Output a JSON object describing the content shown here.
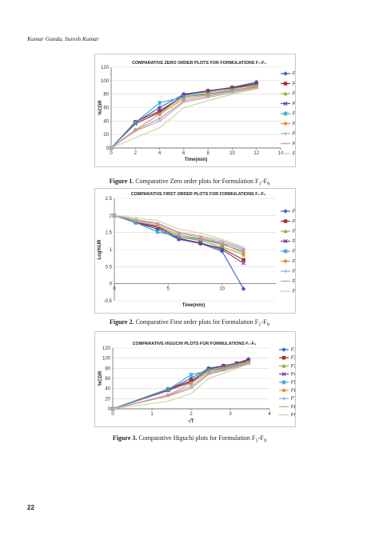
{
  "running_head": "Kumar Gunda, Suresh Kumar",
  "page_number": "22",
  "colors": {
    "F1": "#3a5fcd",
    "F2": "#b22222",
    "F3": "#8db33a",
    "F4": "#6a3d9a",
    "F5": "#33a9c9",
    "F6": "#f08c2a",
    "F7": "#8da9e0",
    "F8": "#d99a9a",
    "F9": "#c3d69b"
  },
  "figures": [
    {
      "caption_label": "Figure 1.",
      "caption_text": "Comparative Zero order plots for Formulation F",
      "caption_sub1": "1",
      "caption_mid": "-F",
      "caption_sub2": "9"
    },
    {
      "caption_label": "Figure 2.",
      "caption_text": "Comparative First order plots for Formulation F",
      "caption_sub1": "1",
      "caption_mid": "-F",
      "caption_sub2": "9"
    },
    {
      "caption_label": "Figure 3.",
      "caption_text": "Comparative Higuchi plots for Formulation F",
      "caption_sub1": "1",
      "caption_mid": "-F",
      "caption_sub2": "9"
    }
  ],
  "chart_data": [
    {
      "type": "line",
      "title": "COMPARATIVE  ZERO  ORDER PLOTS FOR FORMULATIONS  F₁-F₉",
      "xlabel": "Time(min)",
      "ylabel": "%CDR",
      "xlim": [
        0,
        14
      ],
      "ylim": [
        0,
        120
      ],
      "xticks": [
        0,
        2,
        4,
        6,
        8,
        10,
        12,
        14
      ],
      "yticks": [
        0,
        20,
        40,
        60,
        80,
        100,
        120
      ],
      "legend_position": "right",
      "x": [
        0,
        2,
        4,
        6,
        8,
        10,
        12
      ],
      "series": [
        {
          "name": "F1",
          "values": [
            0,
            38,
            60,
            80,
            85,
            90,
            98
          ]
        },
        {
          "name": "F2",
          "values": [
            0,
            39,
            55,
            78,
            85,
            89,
            95
          ]
        },
        {
          "name": "F3",
          "values": [
            0,
            37,
            52,
            76,
            82,
            88,
            93
          ]
        },
        {
          "name": "F4",
          "values": [
            0,
            36,
            53,
            79,
            84,
            90,
            96
          ]
        },
        {
          "name": "F5",
          "values": [
            0,
            38,
            67,
            76,
            80,
            86,
            91
          ]
        },
        {
          "name": "F6",
          "values": [
            0,
            27,
            50,
            73,
            79,
            85,
            92
          ]
        },
        {
          "name": "F7",
          "values": [
            0,
            26,
            44,
            70,
            77,
            84,
            90
          ]
        },
        {
          "name": "F8",
          "values": [
            0,
            25,
            40,
            68,
            75,
            82,
            89
          ]
        },
        {
          "name": "F9",
          "values": [
            0,
            15,
            30,
            60,
            70,
            80,
            88
          ]
        }
      ]
    },
    {
      "type": "line",
      "title": "COMPARATIVE  FIRST  ORDER PLOTS FOR FORMULATIONS F₁-F₉",
      "xlabel": "Time(min)",
      "ylabel": "Log%UR",
      "xlim": [
        0,
        15
      ],
      "ylim": [
        -0.5,
        2.5
      ],
      "xticks": [
        0,
        5,
        10
      ],
      "yticks": [
        -0.5,
        0,
        0.5,
        1,
        1.5,
        2,
        2.5
      ],
      "legend_position": "right",
      "x": [
        0,
        2,
        4,
        6,
        8,
        10,
        12
      ],
      "series": [
        {
          "name": "F1",
          "values": [
            2,
            1.79,
            1.6,
            1.3,
            1.18,
            0.95,
            -0.15
          ]
        },
        {
          "name": "F2",
          "values": [
            2,
            1.79,
            1.65,
            1.34,
            1.18,
            1.04,
            0.7
          ]
        },
        {
          "name": "F3",
          "values": [
            2,
            1.8,
            1.68,
            1.38,
            1.26,
            1.08,
            0.85
          ]
        },
        {
          "name": "F4",
          "values": [
            2,
            1.81,
            1.67,
            1.32,
            1.2,
            1.0,
            0.6
          ]
        },
        {
          "name": "F5",
          "values": [
            2,
            1.79,
            1.52,
            1.38,
            1.3,
            1.15,
            0.95
          ]
        },
        {
          "name": "F6",
          "values": [
            2,
            1.86,
            1.7,
            1.43,
            1.32,
            1.18,
            0.9
          ]
        },
        {
          "name": "F7",
          "values": [
            2,
            1.87,
            1.75,
            1.48,
            1.36,
            1.2,
            1.0
          ]
        },
        {
          "name": "F8",
          "values": [
            2,
            1.88,
            1.78,
            1.51,
            1.4,
            1.25,
            1.04
          ]
        },
        {
          "name": "F9",
          "values": [
            2,
            1.93,
            1.85,
            1.6,
            1.48,
            1.3,
            1.08
          ]
        }
      ]
    },
    {
      "type": "line",
      "title": "COMPARATIVE  HIGUCHI  PLOTS FOR FORMULATIONS  F₁-F₉",
      "xlabel": "√T",
      "ylabel": "%CDR",
      "xlim": [
        0,
        4
      ],
      "ylim": [
        0,
        120
      ],
      "xticks": [
        0,
        1,
        2,
        3,
        4
      ],
      "yticks": [
        0,
        20,
        40,
        60,
        80,
        100,
        120
      ],
      "legend_position": "right",
      "x": [
        0,
        1.414,
        2,
        2.449,
        2.828,
        3.162,
        3.464
      ],
      "series": [
        {
          "name": "F1",
          "values": [
            0,
            38,
            60,
            80,
            85,
            90,
            98
          ]
        },
        {
          "name": "F2",
          "values": [
            0,
            39,
            55,
            78,
            85,
            89,
            95
          ]
        },
        {
          "name": "F3",
          "values": [
            0,
            37,
            52,
            76,
            82,
            88,
            93
          ]
        },
        {
          "name": "F4",
          "values": [
            0,
            36,
            53,
            79,
            84,
            90,
            96
          ]
        },
        {
          "name": "F5",
          "values": [
            0,
            38,
            67,
            76,
            80,
            86,
            91
          ]
        },
        {
          "name": "F6",
          "values": [
            0,
            27,
            50,
            73,
            79,
            85,
            92
          ]
        },
        {
          "name": "F7",
          "values": [
            0,
            26,
            44,
            70,
            77,
            84,
            90
          ]
        },
        {
          "name": "F8",
          "values": [
            0,
            25,
            40,
            68,
            75,
            82,
            89
          ]
        },
        {
          "name": "F9",
          "values": [
            0,
            15,
            30,
            60,
            70,
            80,
            88
          ]
        }
      ]
    }
  ]
}
